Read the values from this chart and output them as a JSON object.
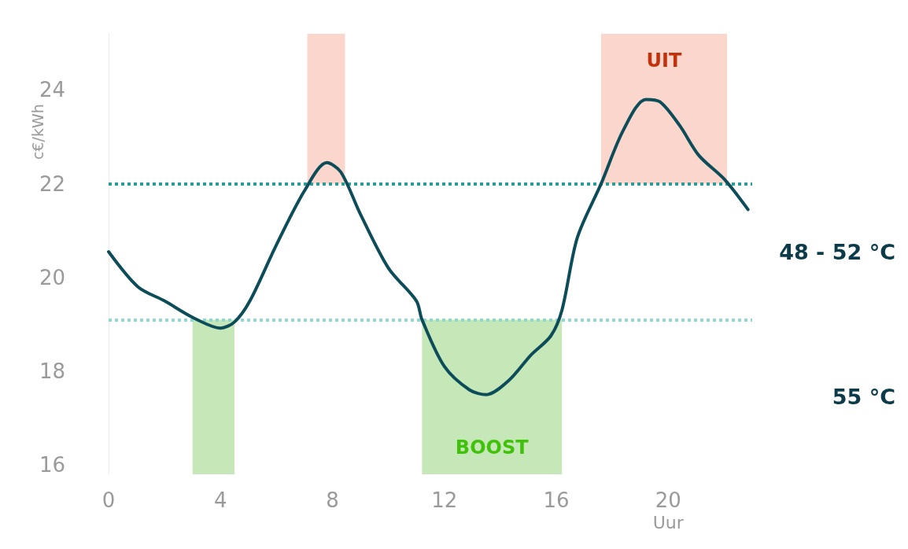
{
  "chart_data": {
    "type": "line",
    "xlabel": "Uur",
    "ylabel": "c€/kWh",
    "xlim": [
      0,
      23
    ],
    "xticks": [
      0,
      4,
      8,
      12,
      16,
      20
    ],
    "ylim": [
      15.8,
      25.2
    ],
    "yticks": [
      16,
      18,
      20,
      22,
      24
    ],
    "series": [
      {
        "color": "#0d4d5a",
        "x": [
          0,
          1.05,
          2,
          3,
          4,
          4.5,
          5.05,
          6,
          7,
          7.8,
          8.3,
          9,
          10,
          11,
          11.2,
          12,
          12.9,
          13.5,
          14.3,
          15.1,
          15.8,
          16.2,
          16.75,
          17.6,
          18.4,
          19.2,
          19.7,
          20.4,
          21.1,
          22,
          22.85
        ],
        "values": [
          20.55,
          19.8,
          19.5,
          19.15,
          18.92,
          19.05,
          19.5,
          20.7,
          21.85,
          22.45,
          22.25,
          21.35,
          20.2,
          19.5,
          19.1,
          18.1,
          17.6,
          17.5,
          17.8,
          18.35,
          18.75,
          19.3,
          20.85,
          22,
          23.15,
          23.8,
          23.75,
          23.25,
          22.6,
          22.1,
          21.45
        ]
      }
    ],
    "ref_lines": [
      {
        "axis": "y",
        "value": 22,
        "color": "#2a9d96",
        "line_style": "dotted"
      },
      {
        "axis": "y",
        "value": 19.1,
        "color": "#8fd8d2",
        "line_style": "dotted"
      }
    ],
    "bands": [
      {
        "axis": "x",
        "from": 3,
        "to": 4.5,
        "color": "#c6e8b8"
      },
      {
        "axis": "x",
        "from": 7.1,
        "to": 8.45,
        "color": "#fad6cc"
      },
      {
        "axis": "x",
        "from": 11.2,
        "to": 16.2,
        "label": "BOOST",
        "color": "#c6e8b8"
      },
      {
        "axis": "x",
        "from": 17.6,
        "to": 22.1,
        "label": "UIT",
        "color": "#fad6cc"
      }
    ],
    "annotations": [
      "48 - 52 °C",
      "55 °C"
    ],
    "grid": false,
    "marker": "none",
    "line_style": "solid"
  }
}
